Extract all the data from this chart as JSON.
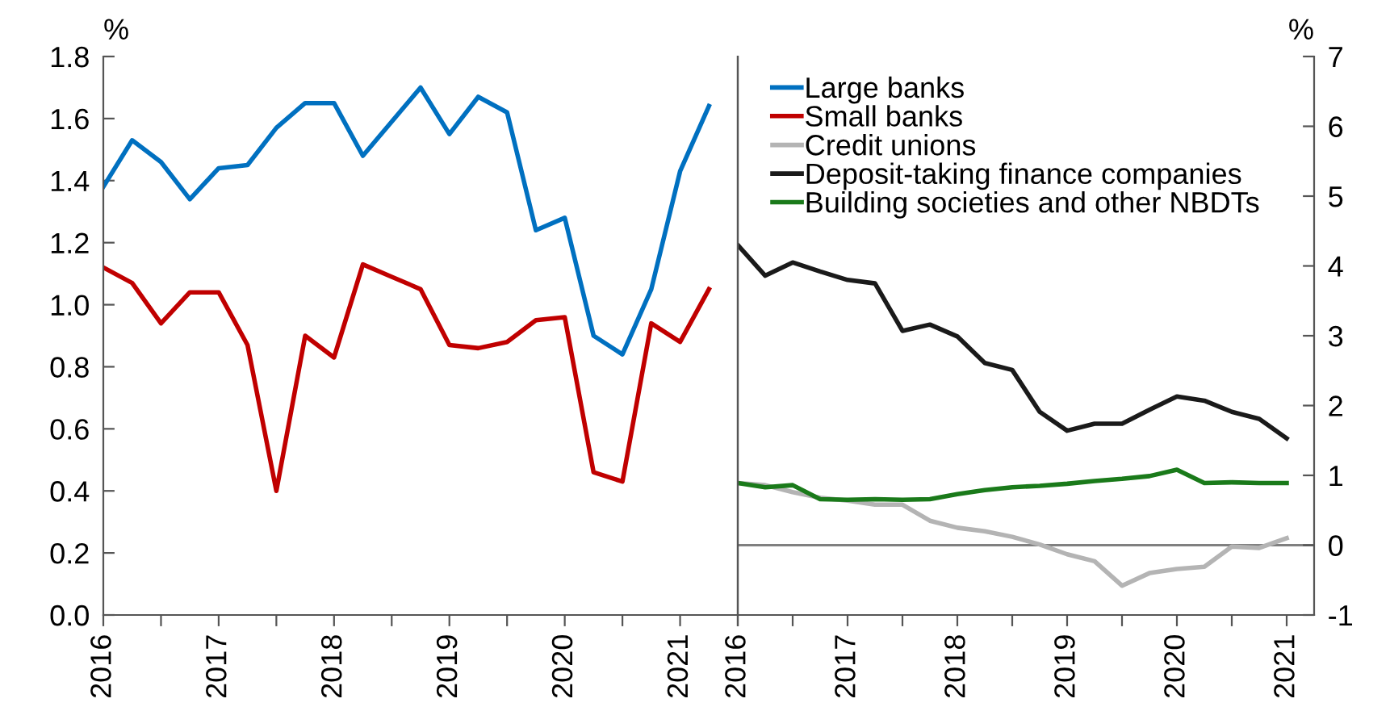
{
  "chart_data": [
    {
      "type": "line",
      "ylabel": "%",
      "x": [
        2016,
        2016.25,
        2016.5,
        2016.75,
        2017,
        2017.25,
        2017.5,
        2017.75,
        2018,
        2018.25,
        2018.5,
        2018.75,
        2019,
        2019.25,
        2019.5,
        2019.75,
        2020,
        2020.25,
        2020.5,
        2020.75,
        2021,
        2021.25
      ],
      "series": [
        {
          "name": "Large banks",
          "color": "#0070c0",
          "values": [
            1.38,
            1.53,
            1.46,
            1.34,
            1.44,
            1.45,
            1.57,
            1.65,
            1.65,
            1.48,
            1.59,
            1.7,
            1.55,
            1.67,
            1.62,
            1.24,
            1.28,
            0.9,
            0.84,
            1.05,
            1.43,
            1.64
          ]
        },
        {
          "name": "Small banks",
          "color": "#c00000",
          "values": [
            1.12,
            1.07,
            0.94,
            1.04,
            1.04,
            0.87,
            0.4,
            0.9,
            0.83,
            1.13,
            1.09,
            1.05,
            0.87,
            0.86,
            0.88,
            0.95,
            0.96,
            0.46,
            0.43,
            0.94,
            0.88,
            1.05
          ]
        }
      ],
      "xlim": [
        2016,
        2021.5
      ],
      "xticks": [
        2016,
        {
          "value": 2016.5,
          "label": null
        },
        2017,
        {
          "value": 2017.5,
          "label": null
        },
        2018,
        {
          "value": 2018.5,
          "label": null
        },
        2019,
        {
          "value": 2019.5,
          "label": null
        },
        2020,
        {
          "value": 2020.5,
          "label": null
        },
        2021,
        {
          "value": 2021.5,
          "label": null
        }
      ],
      "ylim": [
        0,
        1.8
      ],
      "yticks": [
        {
          "value": 0,
          "label": "0.0"
        },
        0.2,
        0.4,
        0.6,
        0.8,
        {
          "value": 1,
          "label": "1.0"
        },
        1.2,
        1.4,
        1.6,
        1.8
      ],
      "grid": false,
      "legend": "top right",
      "marker": "none",
      "line_style": "solid"
    },
    {
      "type": "line",
      "ylabel": "%",
      "x": [
        2016,
        2016.25,
        2016.5,
        2016.75,
        2017,
        2017.25,
        2017.5,
        2017.75,
        2018,
        2018.25,
        2018.5,
        2018.75,
        2019,
        2019.25,
        2019.5,
        2019.75,
        2020,
        2020.25,
        2020.5,
        2020.75,
        2021
      ],
      "series": [
        {
          "name": "Credit unions",
          "color": "#b4b4b4",
          "values": [
            0.89,
            0.86,
            0.76,
            0.68,
            0.64,
            0.58,
            0.58,
            0.35,
            0.25,
            0.2,
            0.12,
            0.01,
            -0.13,
            -0.23,
            -0.58,
            -0.4,
            -0.34,
            -0.31,
            -0.02,
            -0.04,
            0.1
          ]
        },
        {
          "name": "Deposit-taking finance companies",
          "color": "#1a1a1a",
          "values": [
            4.3,
            3.86,
            4.05,
            3.92,
            3.8,
            3.75,
            3.07,
            3.16,
            2.99,
            2.61,
            2.51,
            1.91,
            1.64,
            1.74,
            1.74,
            1.94,
            2.13,
            2.07,
            1.91,
            1.81,
            1.53
          ]
        },
        {
          "name": "Building societies and other NBDTs",
          "color": "#1a7a1a",
          "values": [
            0.89,
            0.83,
            0.86,
            0.66,
            0.65,
            0.66,
            0.65,
            0.66,
            0.73,
            0.79,
            0.83,
            0.85,
            0.88,
            0.92,
            0.95,
            0.99,
            1.08,
            0.89,
            0.9,
            0.89,
            0.89
          ]
        }
      ],
      "xlim": [
        2016,
        2021.25
      ],
      "xticks": [
        2016,
        {
          "value": 2016.5,
          "label": null
        },
        2017,
        {
          "value": 2017.5,
          "label": null
        },
        2018,
        {
          "value": 2018.5,
          "label": null
        },
        2019,
        {
          "value": 2019.5,
          "label": null
        },
        2020,
        {
          "value": 2020.5,
          "label": null
        },
        2021
      ],
      "ylim": [
        -1,
        7
      ],
      "yticks": [
        -1,
        0,
        1,
        2,
        3,
        4,
        5,
        6,
        7
      ],
      "ref_lines": [
        {
          "axis": "y",
          "value": 0,
          "color": "#808080"
        }
      ],
      "grid": false,
      "legend": "top left",
      "marker": "none",
      "line_style": "solid"
    }
  ]
}
